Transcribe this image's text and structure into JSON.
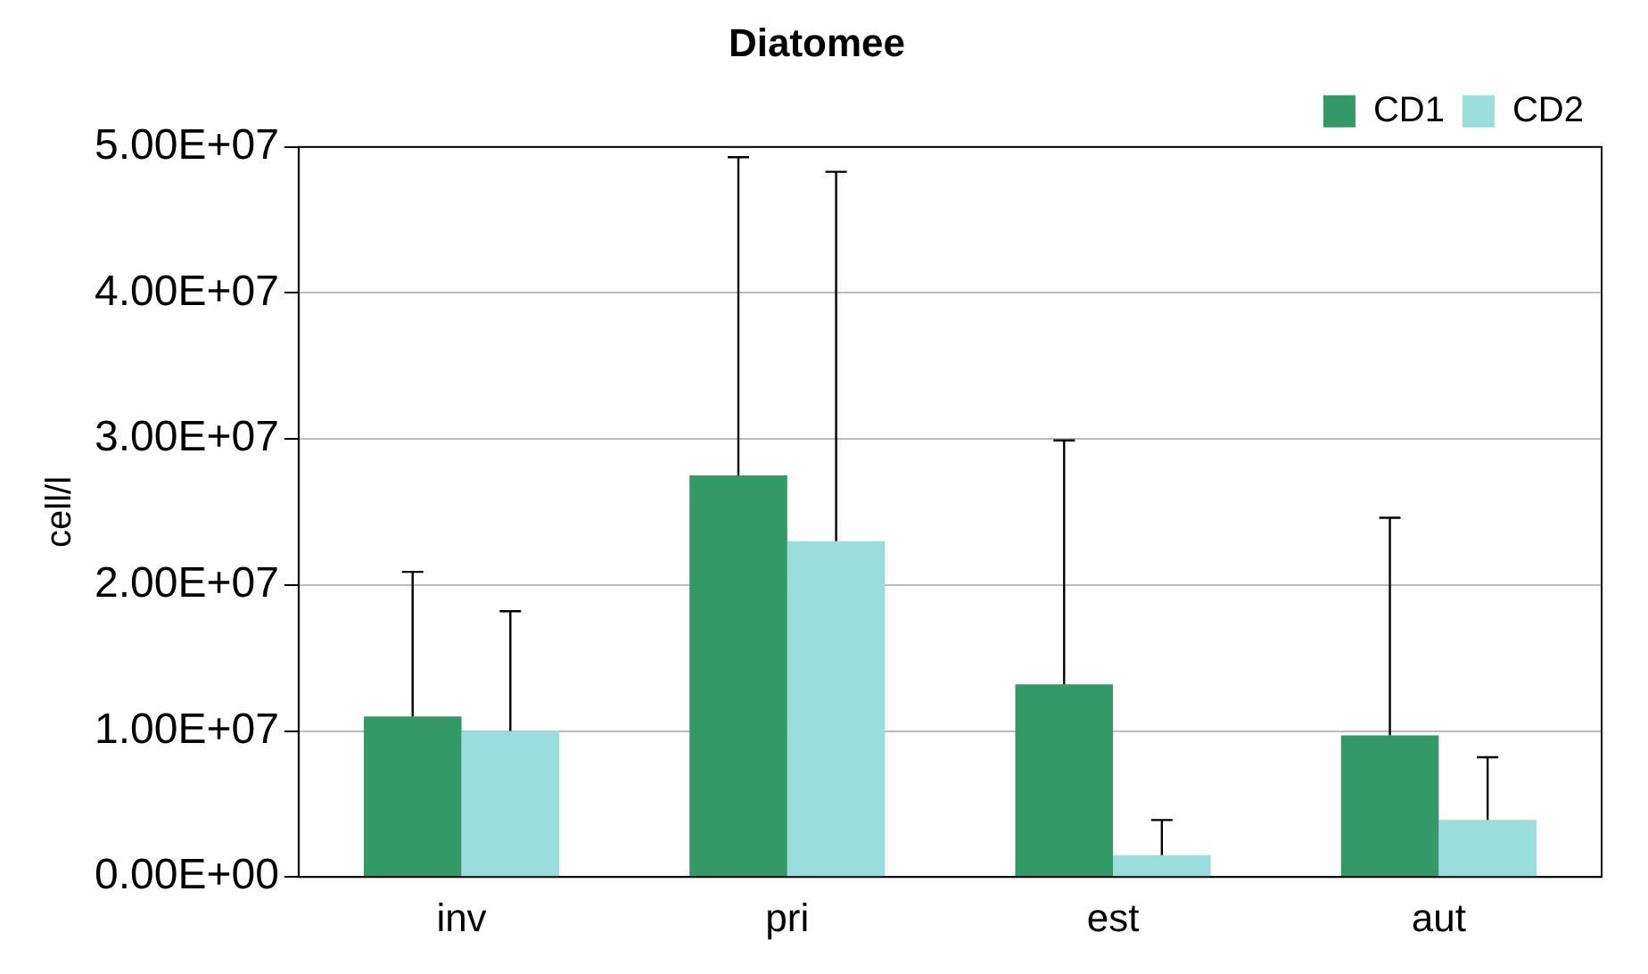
{
  "chart_data": {
    "type": "bar",
    "title": "Diatomee",
    "ylabel": "cell/l",
    "categories": [
      "inv",
      "pri",
      "est",
      "aut"
    ],
    "series": [
      {
        "name": "CD1",
        "color": "#339966",
        "values": [
          11000000,
          27500000,
          13200000,
          9700000
        ],
        "errors": [
          [
            11000000,
            20900000
          ],
          [
            27500000,
            49300000
          ],
          [
            13200000,
            29900000
          ],
          [
            9700000,
            24600000
          ]
        ]
      },
      {
        "name": "CD2",
        "color": "#99dddd",
        "values": [
          10000000,
          23000000,
          1500000,
          3900000
        ],
        "errors": [
          [
            10000000,
            18200000
          ],
          [
            23000000,
            48300000
          ],
          [
            1500000,
            3900000
          ],
          [
            3900000,
            8200000
          ]
        ]
      }
    ],
    "ylim": [
      0,
      50000000
    ],
    "yticks": [
      {
        "value": 0,
        "label": "0.00E+00"
      },
      {
        "value": 10000000,
        "label": "1.00E+07"
      },
      {
        "value": 20000000,
        "label": "2.00E+07"
      },
      {
        "value": 30000000,
        "label": "3.00E+07"
      },
      {
        "value": 40000000,
        "label": "4.00E+07"
      },
      {
        "value": 50000000,
        "label": "5.00E+07"
      }
    ],
    "grid": "y",
    "legend": "top right"
  }
}
